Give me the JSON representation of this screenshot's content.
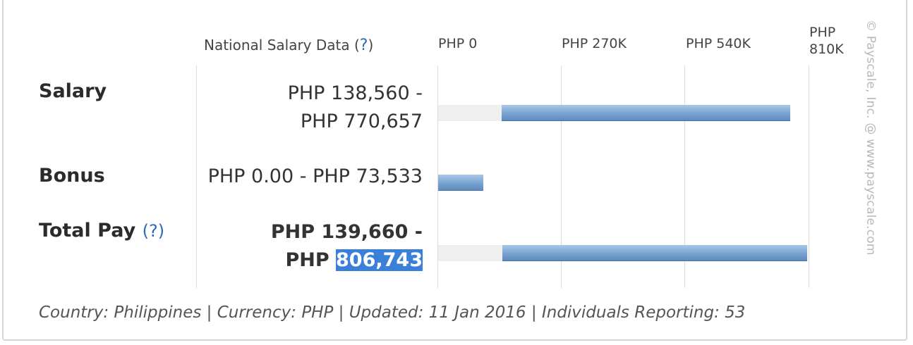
{
  "header": {
    "national_label": "National Salary Data (",
    "help": "?",
    "national_close": ")"
  },
  "chart_data": {
    "type": "bar",
    "orientation": "horizontal-range",
    "x_ticks": [
      "PHP 0",
      "PHP 270K",
      "PHP 540K",
      "PHP\n810K"
    ],
    "x_tick_values": [
      0,
      270000,
      540000,
      810000
    ],
    "xlim": [
      0,
      810000
    ],
    "rows": [
      {
        "label": "Salary",
        "help": "",
        "range_line1": "PHP 138,560 -",
        "range_line2": "PHP 770,657",
        "low": 138560,
        "high": 770657,
        "track": true
      },
      {
        "label": "Bonus",
        "help": "",
        "range_line1": "PHP 0.00 - PHP 73,533",
        "range_line2": "",
        "low": 0,
        "high": 73533,
        "track": false
      },
      {
        "label": "Total Pay",
        "help": "?",
        "range_line1": "PHP 139,660 -",
        "range_line2_prefix": "PHP ",
        "range_line2_highlight": "806,743",
        "low": 139660,
        "high": 806743,
        "track": true
      }
    ],
    "bar_color": "#7ea8d4",
    "track_color": "#efefef"
  },
  "footer": "Country: Philippines | Currency: PHP | Updated: 11 Jan 2016 | Individuals Reporting: 53",
  "watermark": "© Payscale, Inc. @ www.payscale.com"
}
